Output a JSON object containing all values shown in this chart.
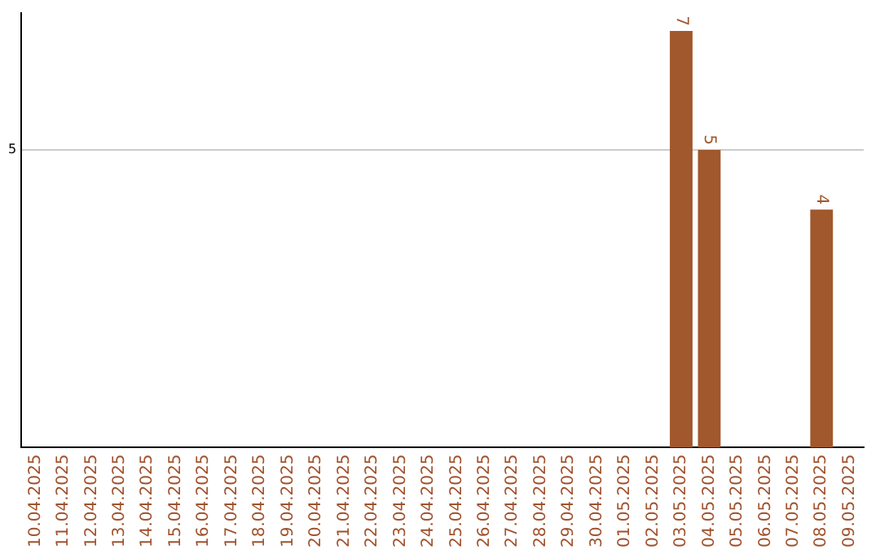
{
  "chart_data": {
    "type": "bar",
    "categories": [
      "10.04.2025",
      "11.04.2025",
      "12.04.2025",
      "13.04.2025",
      "14.04.2025",
      "15.04.2025",
      "16.04.2025",
      "17.04.2025",
      "18.04.2025",
      "19.04.2025",
      "20.04.2025",
      "21.04.2025",
      "22.04.2025",
      "23.04.2025",
      "24.04.2025",
      "25.04.2025",
      "26.04.2025",
      "27.04.2025",
      "28.04.2025",
      "29.04.2025",
      "30.04.2025",
      "01.05.2025",
      "02.05.2025",
      "03.05.2025",
      "04.05.2025",
      "05.05.2025",
      "06.05.2025",
      "07.05.2025",
      "08.05.2025",
      "09.05.2025"
    ],
    "values": [
      null,
      null,
      null,
      null,
      null,
      null,
      null,
      null,
      null,
      null,
      null,
      null,
      null,
      null,
      null,
      null,
      null,
      null,
      null,
      null,
      null,
      null,
      null,
      7,
      5,
      null,
      null,
      null,
      4,
      null
    ],
    "color": "#a0582c",
    "ylim": [
      0,
      7.3
    ],
    "yticks": [
      5
    ],
    "grid": "y",
    "data_labels": true,
    "legend": false
  }
}
